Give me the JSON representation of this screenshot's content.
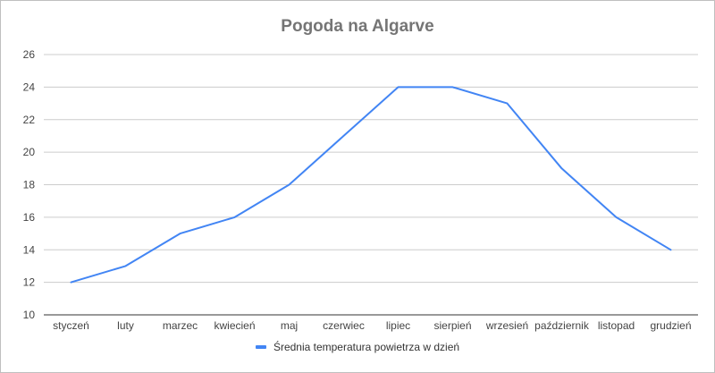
{
  "chart_data": {
    "type": "line",
    "title": "Pogoda na Algarve",
    "categories": [
      "styczeń",
      "luty",
      "marzec",
      "kwiecień",
      "maj",
      "czerwiec",
      "lipiec",
      "sierpień",
      "wrzesień",
      "październik",
      "listopad",
      "grudzień"
    ],
    "series": [
      {
        "name": "Średnia temperatura powietrza w dzień",
        "values": [
          12,
          13,
          15,
          16,
          18,
          21,
          24,
          24,
          23,
          19,
          16,
          14
        ],
        "color": "#4285f4"
      }
    ],
    "ylim": [
      10,
      26
    ],
    "yticks": [
      "10",
      "12",
      "14",
      "16",
      "18",
      "20",
      "22",
      "24",
      "26"
    ],
    "grid": true,
    "legend_position": "bottom"
  }
}
